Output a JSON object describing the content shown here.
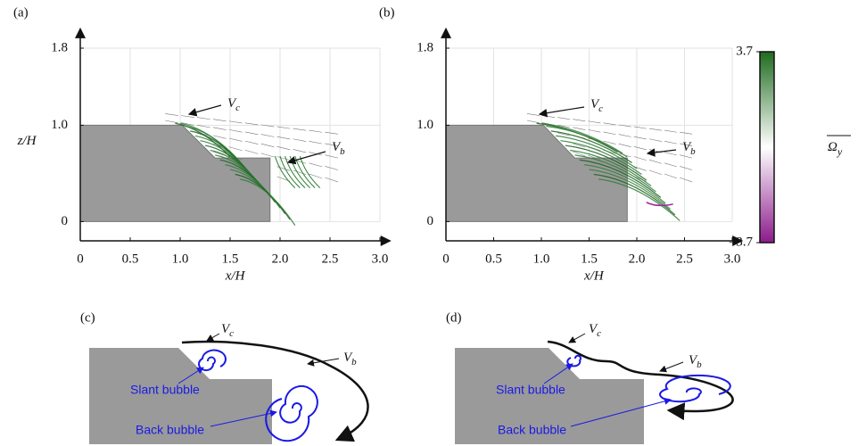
{
  "chart_data": [
    {
      "type": "vector-field",
      "panel": "(a)",
      "xlabel": "x/H",
      "ylabel": "z/H",
      "xlim": [
        0,
        3.1
      ],
      "ylim": [
        -0.2,
        2.0
      ],
      "xticks": [
        0,
        0.5,
        {
          "value": 1,
          "label": "1.0"
        },
        1.5,
        {
          "value": 2,
          "label": "2.0"
        },
        2.5,
        {
          "value": 3,
          "label": "3.0"
        }
      ],
      "yticks": [
        0,
        {
          "value": 1,
          "label": "1.0"
        },
        1.8
      ],
      "grid": true,
      "annotations": [
        {
          "text": "V",
          "sub": "c"
        },
        {
          "text": "V",
          "sub": "b"
        }
      ]
    },
    {
      "type": "vector-field",
      "panel": "(b)",
      "xlabel": "x/H",
      "ylabel": "",
      "xlim": [
        0,
        3.1
      ],
      "ylim": [
        -0.2,
        2.0
      ],
      "xticks": [
        0,
        0.5,
        {
          "value": 1,
          "label": "1.0"
        },
        1.5,
        {
          "value": 2,
          "label": "2.0"
        },
        2.5,
        {
          "value": 3,
          "label": "3.0"
        }
      ],
      "yticks": [
        0,
        {
          "value": 1,
          "label": "1.0"
        },
        1.8
      ],
      "grid": true,
      "annotations": [
        {
          "text": "V",
          "sub": "c"
        },
        {
          "text": "V",
          "sub": "b"
        }
      ]
    }
  ],
  "colorbar": {
    "lim": [
      -3.7,
      3.7
    ],
    "ticks": [
      {
        "value": -3.7,
        "label": "–3.7"
      },
      3.7
    ],
    "label": "Ω",
    "label_sub": "y",
    "colors": [
      "#8b1a8b",
      "#ffffff",
      "#1f6b1f"
    ]
  },
  "schematics": [
    {
      "panel": "(c)",
      "vc": "V",
      "vc_sub": "c",
      "vb": "V",
      "vb_sub": "b",
      "slant": "Slant bubble",
      "back": "Back bubble"
    },
    {
      "panel": "(d)",
      "vc": "V",
      "vc_sub": "c",
      "vb": "V",
      "vb_sub": "b",
      "slant": "Slant bubble",
      "back": "Back bubble"
    }
  ]
}
